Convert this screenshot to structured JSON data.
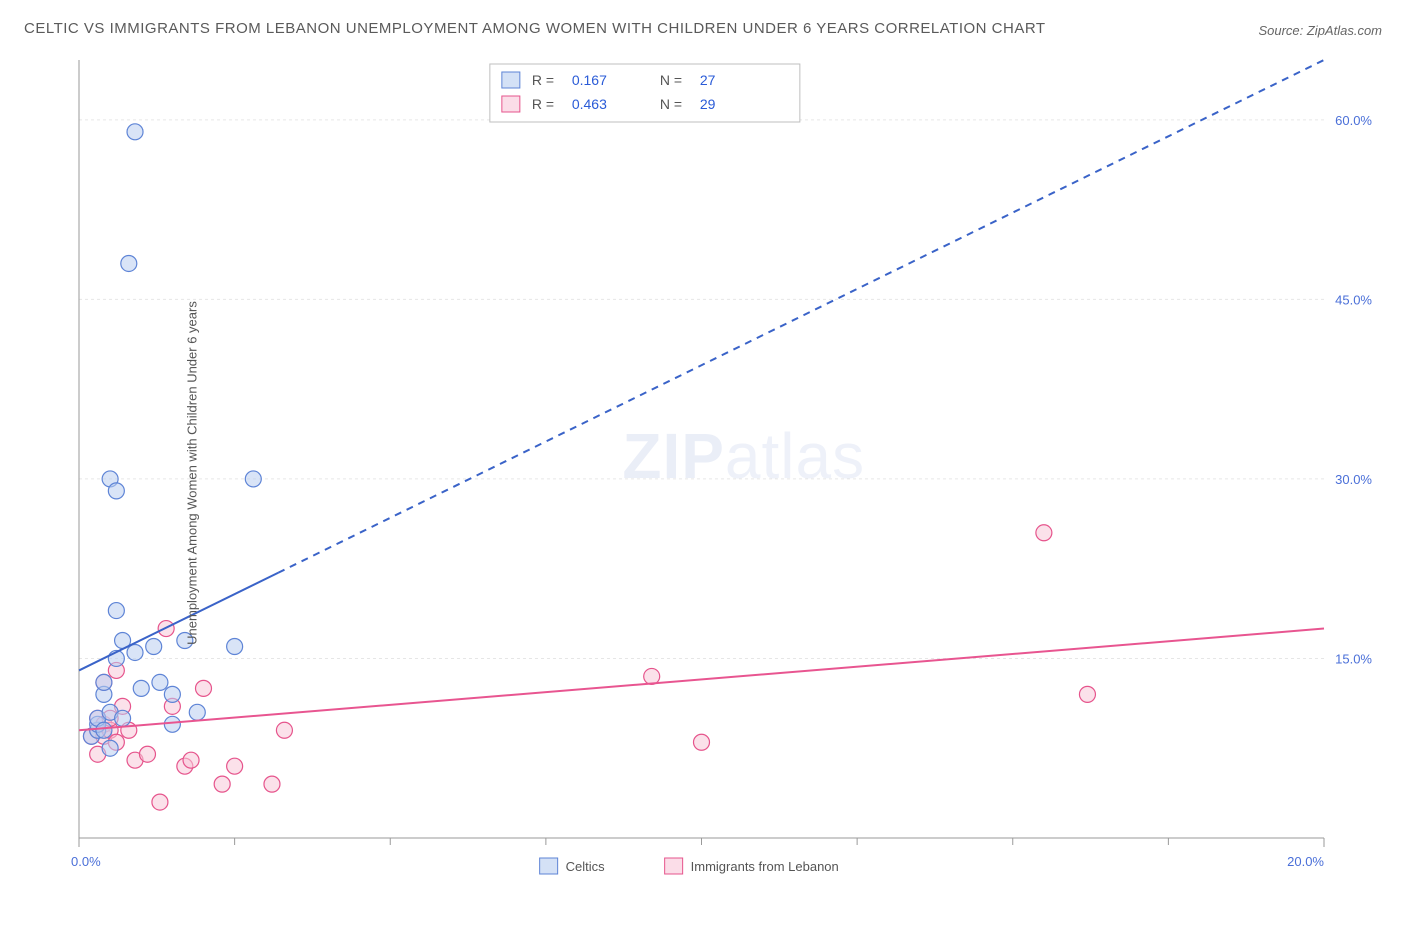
{
  "title": "CELTIC VS IMMIGRANTS FROM LEBANON UNEMPLOYMENT AMONG WOMEN WITH CHILDREN UNDER 6 YEARS CORRELATION CHART",
  "source": "Source: ZipAtlas.com",
  "ylabel": "Unemployment Among Women with Children Under 6 years",
  "watermark_a": "ZIP",
  "watermark_b": "atlas",
  "chart": {
    "type": "scatter",
    "background_color": "#ffffff",
    "grid_color": "#e6e6e6",
    "axis_color": "#9a9a9a",
    "xlim": [
      0,
      20
    ],
    "ylim": [
      0,
      65
    ],
    "xticks": [
      0.0,
      20.0
    ],
    "xtick_labels": [
      "0.0%",
      "20.0%"
    ],
    "yticks": [
      15.0,
      30.0,
      45.0,
      60.0
    ],
    "ytick_labels": [
      "15.0%",
      "30.0%",
      "45.0%",
      "60.0%"
    ],
    "x_minor_ticks": [
      2.5,
      5.0,
      7.5,
      10.0,
      12.5,
      15.0,
      17.5
    ],
    "marker_radius": 8,
    "marker_stroke_width": 1.2,
    "series": [
      {
        "name": "Celtics",
        "fill": "#b9cef1",
        "stroke": "#5e84d6",
        "fill_opacity": 0.55,
        "r_value": "0.167",
        "n_value": "27",
        "trend": {
          "x1": 0,
          "y1": 14.0,
          "x2": 20,
          "y2": 65.0,
          "solid_until_x": 3.2,
          "color": "#3a63c8",
          "width": 2
        },
        "points": [
          [
            0.2,
            8.5
          ],
          [
            0.3,
            9.0
          ],
          [
            0.3,
            9.5
          ],
          [
            0.3,
            10.0
          ],
          [
            0.4,
            9.0
          ],
          [
            0.4,
            12.0
          ],
          [
            0.4,
            13.0
          ],
          [
            0.5,
            10.5
          ],
          [
            0.5,
            7.5
          ],
          [
            0.5,
            30.0
          ],
          [
            0.6,
            29.0
          ],
          [
            0.6,
            15.0
          ],
          [
            0.6,
            19.0
          ],
          [
            0.7,
            16.5
          ],
          [
            0.7,
            10.0
          ],
          [
            0.8,
            48.0
          ],
          [
            0.9,
            15.5
          ],
          [
            0.9,
            59.0
          ],
          [
            1.0,
            12.5
          ],
          [
            1.2,
            16.0
          ],
          [
            1.3,
            13.0
          ],
          [
            1.5,
            9.5
          ],
          [
            1.5,
            12.0
          ],
          [
            1.7,
            16.5
          ],
          [
            1.9,
            10.5
          ],
          [
            2.5,
            16.0
          ],
          [
            2.8,
            30.0
          ]
        ]
      },
      {
        "name": "Immigrants from Lebanon",
        "fill": "#f8c8d9",
        "stroke": "#e6548c",
        "fill_opacity": 0.55,
        "r_value": "0.463",
        "n_value": "29",
        "trend": {
          "x1": 0,
          "y1": 9.0,
          "x2": 20,
          "y2": 17.5,
          "solid_until_x": 20,
          "color": "#e85590",
          "width": 2
        },
        "points": [
          [
            0.2,
            8.5
          ],
          [
            0.3,
            9.0
          ],
          [
            0.3,
            10.0
          ],
          [
            0.3,
            7.0
          ],
          [
            0.4,
            8.5
          ],
          [
            0.4,
            9.5
          ],
          [
            0.4,
            13.0
          ],
          [
            0.5,
            9.0
          ],
          [
            0.5,
            10.0
          ],
          [
            0.6,
            8.0
          ],
          [
            0.6,
            14.0
          ],
          [
            0.7,
            11.0
          ],
          [
            0.8,
            9.0
          ],
          [
            0.9,
            6.5
          ],
          [
            1.1,
            7.0
          ],
          [
            1.3,
            3.0
          ],
          [
            1.4,
            17.5
          ],
          [
            1.5,
            11.0
          ],
          [
            1.7,
            6.0
          ],
          [
            1.8,
            6.5
          ],
          [
            2.0,
            12.5
          ],
          [
            2.3,
            4.5
          ],
          [
            2.5,
            6.0
          ],
          [
            3.1,
            4.5
          ],
          [
            3.3,
            9.0
          ],
          [
            9.2,
            13.5
          ],
          [
            10.0,
            8.0
          ],
          [
            15.5,
            25.5
          ],
          [
            16.2,
            12.0
          ]
        ]
      }
    ],
    "stats_box": {
      "r_label": "R =",
      "n_label": "N =",
      "r_color": "#2a5bd7",
      "label_color": "#555555"
    },
    "bottom_legend": {
      "swatch_stroke_width": 1
    }
  }
}
